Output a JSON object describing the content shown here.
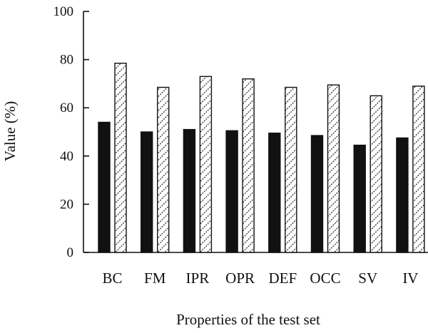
{
  "chart_data": {
    "type": "bar",
    "title": "",
    "xlabel": "Properties of the test set",
    "ylabel": "Value (%)",
    "ylim": [
      0,
      100
    ],
    "yticks": [
      0,
      20,
      40,
      60,
      80,
      100
    ],
    "grid": false,
    "legend": "none",
    "categories": [
      "BC",
      "FM",
      "IPR",
      "OPR",
      "DEF",
      "OCC",
      "SV",
      "IV"
    ],
    "series": [
      {
        "fill": "solid",
        "color": "#111111",
        "values": [
          54,
          50,
          51,
          50.5,
          49.5,
          48.5,
          44.5,
          47.5
        ]
      },
      {
        "fill": "hatched",
        "color": "#111111",
        "values": [
          78.5,
          68.5,
          73,
          72,
          68.5,
          69.5,
          65,
          69
        ]
      }
    ]
  }
}
